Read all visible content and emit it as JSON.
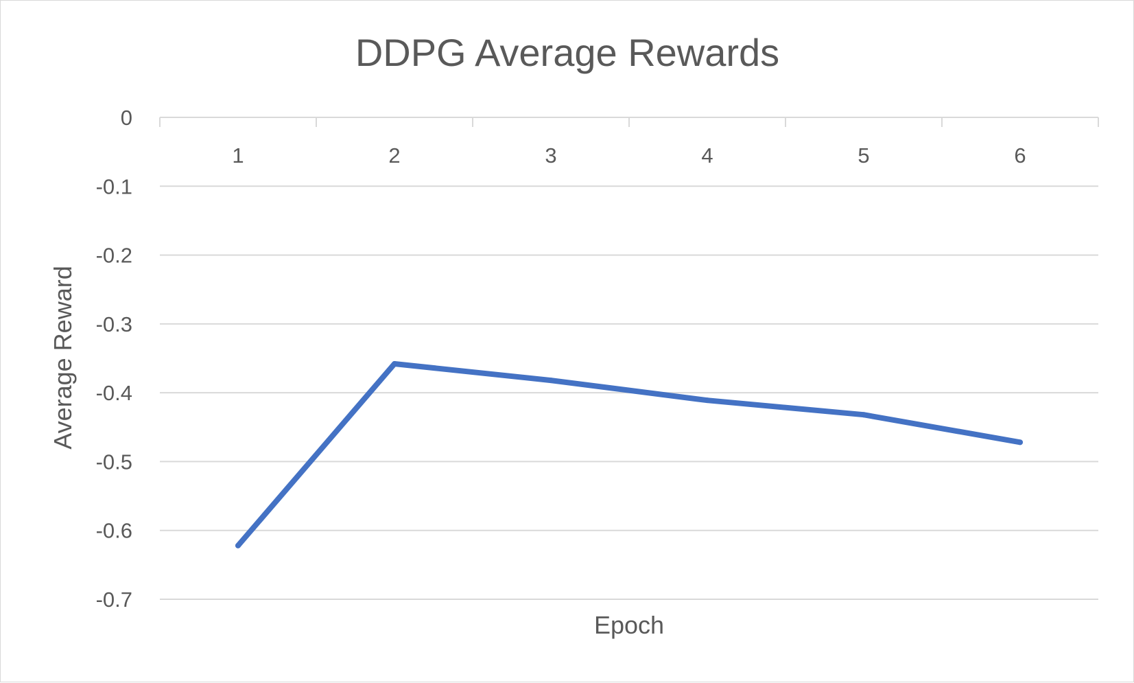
{
  "chart_data": {
    "type": "line",
    "title": "DDPG Average Rewards",
    "xlabel": "Epoch",
    "ylabel": "Average Reward",
    "categories": [
      "1",
      "2",
      "3",
      "4",
      "5",
      "6"
    ],
    "series": [
      {
        "values": [
          -0.622,
          -0.358,
          -0.382,
          -0.411,
          -0.432,
          -0.472
        ]
      }
    ],
    "ylim": [
      -0.7,
      0
    ],
    "yticks": [
      "0",
      "-0.1",
      "-0.2",
      "-0.3",
      "-0.4",
      "-0.5",
      "-0.6",
      "-0.7"
    ],
    "grid": true,
    "legend": "none",
    "line_color": "#4472C4",
    "grid_color": "#d9d9d9",
    "text_color": "#595959"
  }
}
